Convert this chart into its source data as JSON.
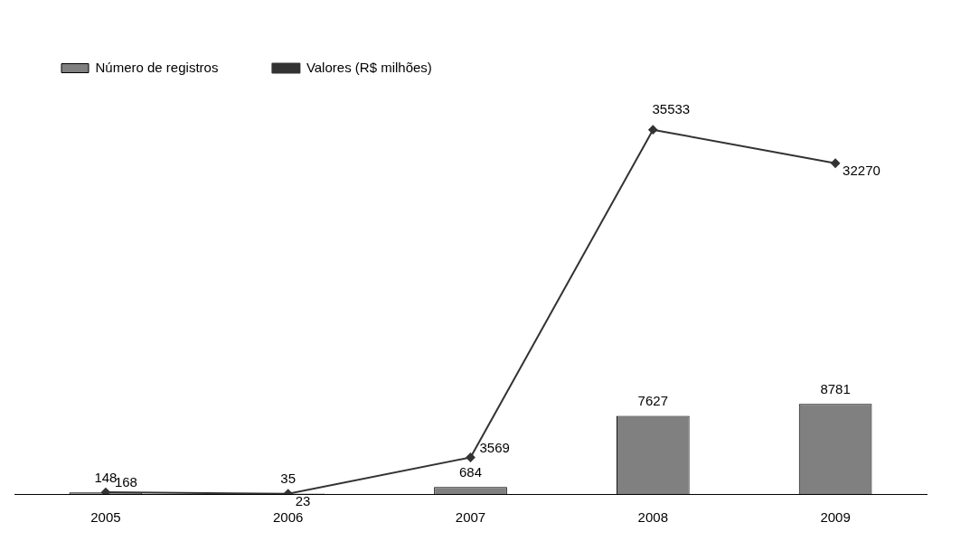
{
  "chart_data": {
    "type": "bar",
    "categories": [
      "2005",
      "2006",
      "2007",
      "2008",
      "2009"
    ],
    "series": [
      {
        "name": "Número de registros",
        "color": "#808080",
        "values": [
          148,
          35,
          684,
          7627,
          8781
        ]
      },
      {
        "name": "Valores (R$ milhões)",
        "type": "line",
        "color": "#333333",
        "values": [
          168,
          23,
          3569,
          35533,
          32270
        ],
        "marker": "diamond"
      }
    ],
    "tick_labels": "x",
    "grid": false,
    "legend": "top left",
    "data_labels": true
  }
}
